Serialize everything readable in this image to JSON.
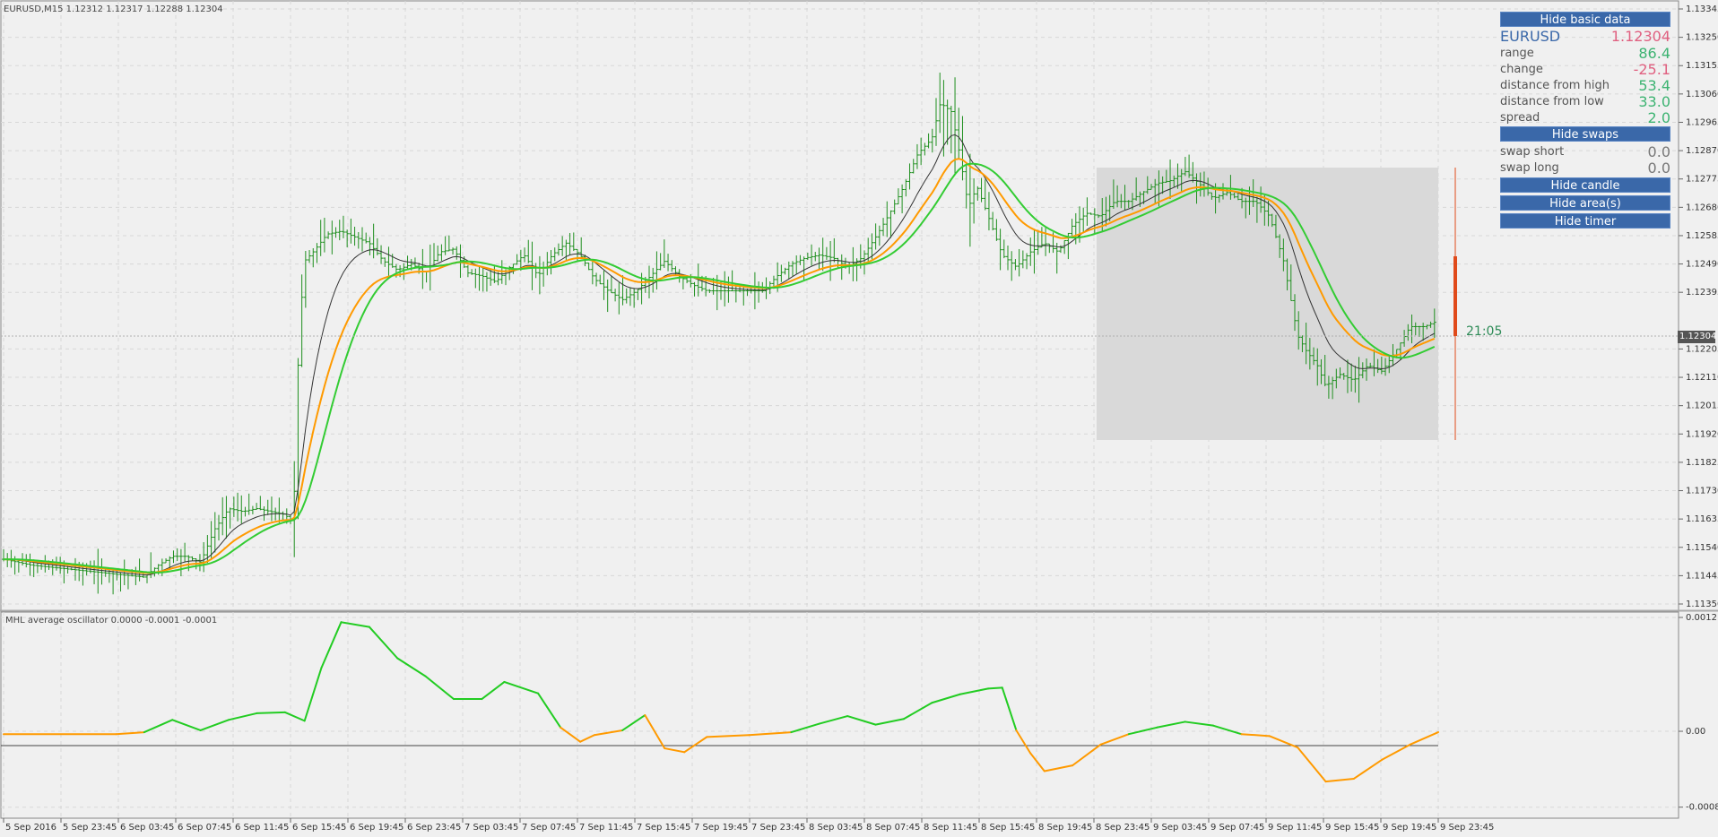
{
  "header": {
    "chart_title": "EURUSD,M15  1.12312 1.12317 1.12288 1.12304",
    "oscillator_title": "MHL average oscillator 0.0000 -0.0001 -0.0001"
  },
  "info_panel": {
    "buttons": {
      "hide_basic_data": "Hide basic data",
      "hide_swaps": "Hide swaps",
      "hide_candle": "Hide candle",
      "hide_areas": "Hide area(s)",
      "hide_timer": "Hide timer"
    },
    "symbol": "EURUSD",
    "price": "1.12304",
    "rows": [
      {
        "label": "range",
        "value": "86.4",
        "color": "#3cb371"
      },
      {
        "label": "change",
        "value": "-25.1",
        "color": "#e06080"
      },
      {
        "label": "distance from high",
        "value": "53.4",
        "color": "#3cb371"
      },
      {
        "label": "distance from low",
        "value": "33.0",
        "color": "#3cb371"
      },
      {
        "label": "spread",
        "value": "2.0",
        "color": "#3cb371"
      }
    ],
    "swaps": [
      {
        "label": "swap short",
        "value": "0.0"
      },
      {
        "label": "swap long",
        "value": "0.0"
      }
    ],
    "price_color": "#e06080",
    "symbol_color": "#3a68a9"
  },
  "timer": "21:05",
  "current_price_tag": "1.12304",
  "colors": {
    "candles": "#1f8f1f",
    "ma_orange": "#ff9a00",
    "ma_green": "#33cc33",
    "ma_gray": "#333333",
    "area": "#d9d9d9",
    "candle_bar": "#e04a1a",
    "osc_pos": "#22cc22",
    "osc_neg": "#ff9a00"
  },
  "chart_data": [
    {
      "type": "line",
      "title": "EURUSD,M15",
      "x_ticks": [
        "5 Sep 2016",
        "5 Sep 23:45",
        "6 Sep 03:45",
        "6 Sep 07:45",
        "6 Sep 11:45",
        "6 Sep 15:45",
        "6 Sep 19:45",
        "6 Sep 23:45",
        "7 Sep 03:45",
        "7 Sep 07:45",
        "7 Sep 11:45",
        "7 Sep 15:45",
        "7 Sep 19:45",
        "7 Sep 23:45",
        "8 Sep 03:45",
        "8 Sep 07:45",
        "8 Sep 11:45",
        "8 Sep 15:45",
        "8 Sep 19:45",
        "8 Sep 23:45",
        "9 Sep 03:45",
        "9 Sep 07:45",
        "9 Sep 11:45",
        "9 Sep 15:45",
        "9 Sep 19:45",
        "9 Sep 23:45"
      ],
      "y_ticks": [
        "1.13345",
        "1.13250",
        "1.13155",
        "1.13060",
        "1.12965",
        "1.12870",
        "1.12775",
        "1.12680",
        "1.12585",
        "1.12490",
        "1.12395",
        "1.12205",
        "1.12110",
        "1.12015",
        "1.11920",
        "1.11825",
        "1.11730",
        "1.11635",
        "1.11540",
        "1.11445",
        "1.11350"
      ],
      "ylim": [
        1.1135,
        1.13345
      ],
      "price_path": [
        [
          0,
          1.115
        ],
        [
          1,
          1.1148
        ],
        [
          2,
          1.1147
        ],
        [
          3,
          1.1146
        ],
        [
          4,
          1.1145
        ],
        [
          5,
          1.1144
        ],
        [
          5.5,
          1.1148
        ],
        [
          6,
          1.1151
        ],
        [
          6.5,
          1.1151
        ],
        [
          7,
          1.1149
        ],
        [
          7.5,
          1.116
        ],
        [
          8,
          1.1167
        ],
        [
          8.5,
          1.1166
        ],
        [
          9,
          1.1167
        ],
        [
          9.5,
          1.1166
        ],
        [
          10,
          1.1165
        ],
        [
          10.3,
          1.1162
        ],
        [
          10.5,
          1.1225
        ],
        [
          10.7,
          1.125
        ],
        [
          11,
          1.1253
        ],
        [
          11.5,
          1.1259
        ],
        [
          12,
          1.126
        ],
        [
          12.5,
          1.1258
        ],
        [
          13,
          1.1256
        ],
        [
          13.5,
          1.125
        ],
        [
          14,
          1.1247
        ],
        [
          14.5,
          1.1249
        ],
        [
          15,
          1.1246
        ],
        [
          15.5,
          1.1253
        ],
        [
          16,
          1.1254
        ],
        [
          16.5,
          1.1246
        ],
        [
          17,
          1.1245
        ],
        [
          17.5,
          1.1243
        ],
        [
          18,
          1.1248
        ],
        [
          18.5,
          1.1252
        ],
        [
          19,
          1.1245
        ],
        [
          19.5,
          1.1252
        ],
        [
          20,
          1.1256
        ],
        [
          20.5,
          1.1252
        ],
        [
          21,
          1.1244
        ],
        [
          21.5,
          1.124
        ],
        [
          22,
          1.1237
        ],
        [
          22.5,
          1.124
        ],
        [
          23,
          1.1245
        ],
        [
          23.5,
          1.125
        ],
        [
          24,
          1.1245
        ],
        [
          24.5,
          1.1242
        ],
        [
          25,
          1.124
        ],
        [
          25.5,
          1.124
        ],
        [
          26,
          1.124
        ],
        [
          26.5,
          1.124
        ],
        [
          27,
          1.124
        ],
        [
          27.5,
          1.1245
        ],
        [
          28,
          1.1249
        ],
        [
          28.5,
          1.1251
        ],
        [
          29,
          1.1252
        ],
        [
          29.5,
          1.1251
        ],
        [
          30,
          1.1248
        ],
        [
          30.5,
          1.1251
        ],
        [
          31,
          1.1258
        ],
        [
          31.5,
          1.1266
        ],
        [
          32,
          1.1275
        ],
        [
          32.5,
          1.1286
        ],
        [
          33,
          1.1291
        ],
        [
          33.3,
          1.1303
        ],
        [
          33.7,
          1.13
        ],
        [
          34,
          1.1285
        ],
        [
          34.3,
          1.1268
        ],
        [
          34.6,
          1.1275
        ],
        [
          35,
          1.1265
        ],
        [
          35.5,
          1.1252
        ],
        [
          36,
          1.1248
        ],
        [
          36.5,
          1.1253
        ],
        [
          37,
          1.1256
        ],
        [
          37.5,
          1.1253
        ],
        [
          38,
          1.1262
        ],
        [
          38.5,
          1.1266
        ],
        [
          39,
          1.1265
        ],
        [
          39.5,
          1.127
        ],
        [
          40,
          1.127
        ],
        [
          40.5,
          1.1273
        ],
        [
          41,
          1.1276
        ],
        [
          41.5,
          1.1277
        ],
        [
          42,
          1.128
        ],
        [
          42.5,
          1.1276
        ],
        [
          43,
          1.1271
        ],
        [
          43.5,
          1.1273
        ],
        [
          44,
          1.127
        ],
        [
          44.5,
          1.127
        ],
        [
          45,
          1.1265
        ],
        [
          45.5,
          1.125
        ],
        [
          46,
          1.1225
        ],
        [
          46.3,
          1.122
        ],
        [
          46.7,
          1.1215
        ],
        [
          47,
          1.1208
        ],
        [
          47.5,
          1.1212
        ],
        [
          48,
          1.121
        ],
        [
          48.5,
          1.1215
        ],
        [
          49,
          1.1213
        ],
        [
          49.5,
          1.122
        ],
        [
          50,
          1.1228
        ],
        [
          50.5,
          1.1228
        ],
        [
          51,
          1.123
        ]
      ]
    },
    {
      "type": "area",
      "title": "MHL average oscillator",
      "y_ticks": [
        "0.0012",
        "0.00",
        "-0.0008"
      ],
      "ylim": [
        -0.00085,
        0.0012
      ],
      "values": [
        [
          0,
          -3e-05
        ],
        [
          4,
          -3e-05
        ],
        [
          5,
          -1e-05
        ],
        [
          6,
          0.00012
        ],
        [
          7,
          1e-05
        ],
        [
          8,
          0.00012
        ],
        [
          9,
          0.00019
        ],
        [
          10,
          0.0002
        ],
        [
          10.7,
          0.00011
        ],
        [
          11.3,
          0.00067
        ],
        [
          12,
          0.00115
        ],
        [
          13,
          0.0011
        ],
        [
          14,
          0.00077
        ],
        [
          15,
          0.00058
        ],
        [
          16,
          0.00034
        ],
        [
          17,
          0.00034
        ],
        [
          17.8,
          0.00052
        ],
        [
          19,
          0.0004
        ],
        [
          19.8,
          4e-05
        ],
        [
          20.5,
          -0.00011
        ],
        [
          21,
          -4e-05
        ],
        [
          22,
          1e-05
        ],
        [
          22.8,
          0.00017
        ],
        [
          23.5,
          -0.00018
        ],
        [
          24.2,
          -0.00022
        ],
        [
          25,
          -6e-05
        ],
        [
          26.5,
          -4e-05
        ],
        [
          28,
          -1e-05
        ],
        [
          29,
          8e-05
        ],
        [
          30,
          0.00016
        ],
        [
          31,
          7e-05
        ],
        [
          32,
          0.00013
        ],
        [
          33,
          0.0003
        ],
        [
          34,
          0.00039
        ],
        [
          35,
          0.00045
        ],
        [
          35.5,
          0.00046
        ],
        [
          36,
          1e-05
        ],
        [
          36.5,
          -0.00023
        ],
        [
          37,
          -0.00042
        ],
        [
          38,
          -0.00036
        ],
        [
          39,
          -0.00014
        ],
        [
          40,
          -3e-05
        ],
        [
          41,
          4e-05
        ],
        [
          42,
          0.0001
        ],
        [
          43,
          6e-05
        ],
        [
          44,
          -3e-05
        ],
        [
          45,
          -5e-05
        ],
        [
          46,
          -0.00017
        ],
        [
          47,
          -0.00053
        ],
        [
          48,
          -0.0005
        ],
        [
          49,
          -0.0003
        ],
        [
          50,
          -0.00014
        ],
        [
          51,
          -1e-05
        ]
      ]
    }
  ]
}
